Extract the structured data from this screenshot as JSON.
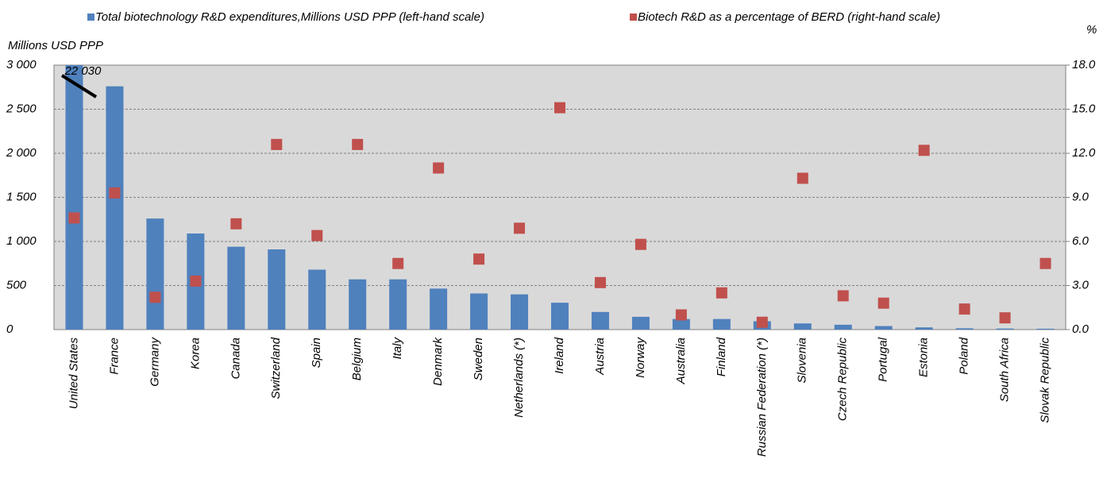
{
  "chart_data": {
    "type": "bar",
    "categories": [
      "United States",
      "France",
      "Germany",
      "Korea",
      "Canada",
      "Switzerland",
      "Spain",
      "Belgium",
      "Italy",
      "Denmark",
      "Sweden",
      "Netherlands (*)",
      "Ireland",
      "Austria",
      "Norway",
      "Australia",
      "Finland",
      "Russian Federation (*)",
      "Slovenia",
      "Czech Republic",
      "Portugal",
      "Estonia",
      "Poland",
      "South Africa",
      "Slovak Republic"
    ],
    "series": [
      {
        "name": "Total biotechnology R&D expenditures,Millions USD PPP (left-hand scale)",
        "type": "bar",
        "color": "#4f81bd",
        "values": [
          22030,
          2760,
          1260,
          1090,
          940,
          910,
          680,
          570,
          570,
          465,
          410,
          400,
          305,
          200,
          145,
          120,
          120,
          95,
          70,
          55,
          40,
          25,
          15,
          12,
          10
        ],
        "value_labels": [
          "22 030",
          null,
          null,
          null,
          null,
          null,
          null,
          null,
          null,
          null,
          null,
          null,
          null,
          null,
          null,
          null,
          null,
          null,
          null,
          null,
          null,
          null,
          null,
          null,
          null
        ]
      },
      {
        "name": "Biotech R&D as a percentage of BERD (right-hand scale)",
        "type": "scatter",
        "color": "#c0504d",
        "axis": "y2",
        "values": [
          7.6,
          9.3,
          2.2,
          3.3,
          7.2,
          12.6,
          6.4,
          12.6,
          4.5,
          11.0,
          4.8,
          6.9,
          15.1,
          3.2,
          5.8,
          1.0,
          2.5,
          0.5,
          10.3,
          2.3,
          1.8,
          12.2,
          1.4,
          0.8,
          4.5
        ]
      }
    ],
    "ylabel": "Millions USD PPP",
    "y2label": "%",
    "ylim": [
      0,
      3000
    ],
    "yticks": [
      0,
      500,
      {
        "value": 1000,
        "label": "1 000"
      },
      {
        "value": 1500,
        "label": "1 500"
      },
      {
        "value": 2000,
        "label": "2 000"
      },
      {
        "value": 2500,
        "label": "2 500"
      },
      {
        "value": 3000,
        "label": "3 000"
      }
    ],
    "y2lim": [
      0,
      18
    ],
    "y2ticks": [
      {
        "value": 0,
        "label": "0.0"
      },
      {
        "value": 3,
        "label": "3.0"
      },
      {
        "value": 6,
        "label": "6.0"
      },
      {
        "value": 9,
        "label": "9.0"
      },
      {
        "value": 12,
        "label": "12.0"
      },
      {
        "value": 15,
        "label": "15.0"
      },
      {
        "value": 18,
        "label": "18.0"
      }
    ],
    "grid": true,
    "legend": "top"
  }
}
